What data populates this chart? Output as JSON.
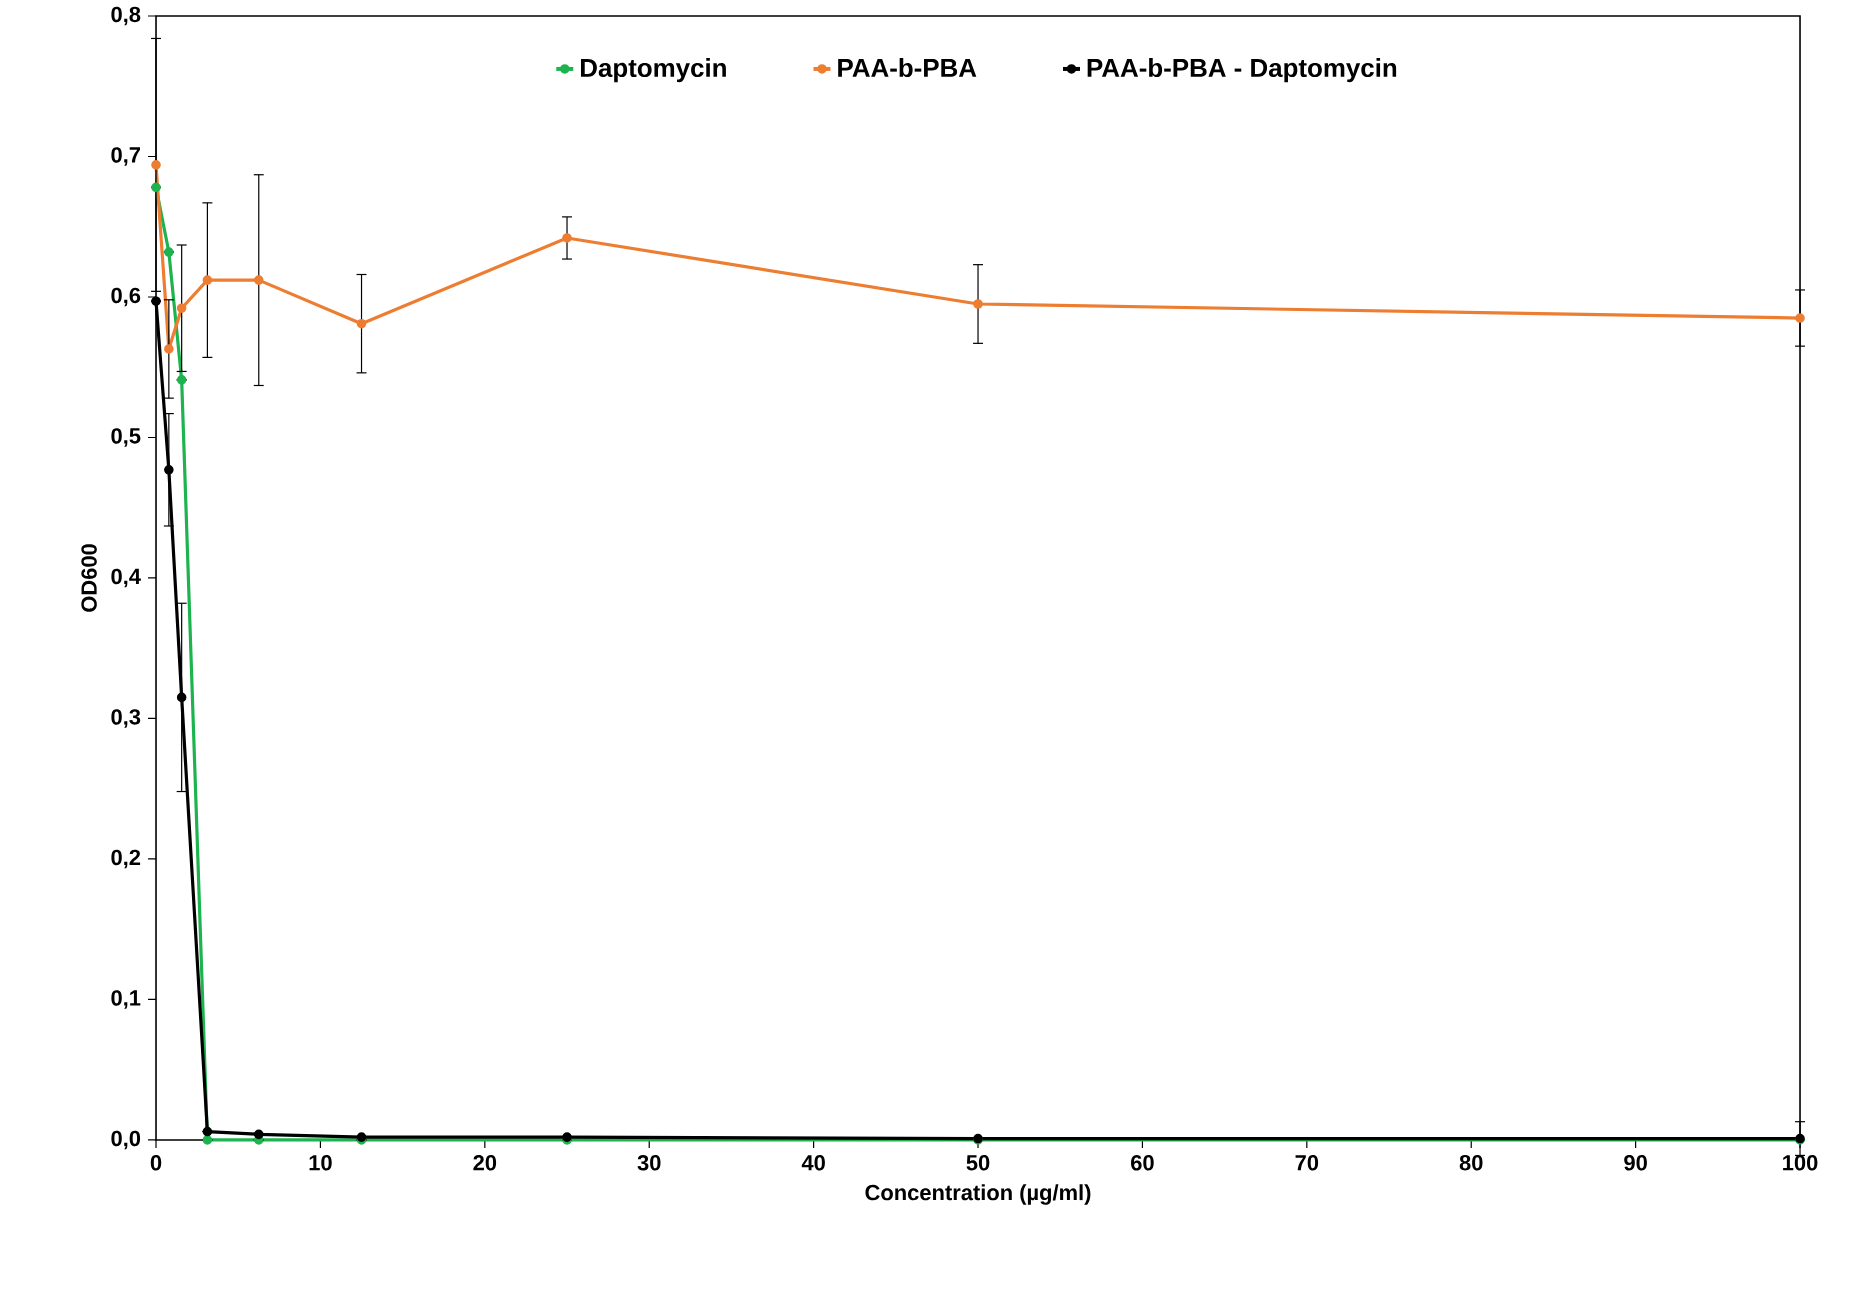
{
  "chart_data": {
    "type": "line",
    "xlabel": "Concentration (µg/ml)",
    "ylabel": "OD600",
    "xlim": [
      0,
      100
    ],
    "xticks": [
      0,
      10,
      20,
      30,
      40,
      50,
      60,
      70,
      80,
      90,
      100
    ],
    "ylim": [
      0,
      0.8
    ],
    "yticks": [
      {
        "value": 0,
        "label": "0,0"
      },
      {
        "value": 0.1,
        "label": "0,1"
      },
      {
        "value": 0.2,
        "label": "0,2"
      },
      {
        "value": 0.3,
        "label": "0,3"
      },
      {
        "value": 0.4,
        "label": "0,4"
      },
      {
        "value": 0.5,
        "label": "0,5"
      },
      {
        "value": 0.6,
        "label": "0,6"
      },
      {
        "value": 0.7,
        "label": "0,7"
      },
      {
        "value": 0.8,
        "label": "0,8"
      }
    ],
    "x": [
      0,
      0.78,
      1.56,
      3.125,
      6.25,
      12.5,
      25,
      50,
      100
    ],
    "grid": false,
    "legend": "top",
    "marker": "circle",
    "line_style": "solid",
    "series": [
      {
        "name": "Daptomycin",
        "color": "#1db34e",
        "values": [
          0.678,
          0.632,
          0.541,
          0.0,
          0.0,
          0.0,
          0.0,
          0.0,
          0.0
        ],
        "errors": [
          null,
          null,
          null,
          null,
          null,
          null,
          null,
          null,
          null
        ]
      },
      {
        "name": "PAA-b-PBA",
        "color": "#ed7d31",
        "values": [
          0.694,
          0.563,
          0.592,
          0.612,
          0.612,
          0.581,
          0.642,
          0.595,
          0.585
        ],
        "errors": [
          0.09,
          0.035,
          0.045,
          0.055,
          0.075,
          0.035,
          0.015,
          0.028,
          0.02
        ]
      },
      {
        "name": "PAA-b-PBA - Daptomycin",
        "color": "#000000",
        "values": [
          0.597,
          0.477,
          0.315,
          0.006,
          0.004,
          0.002,
          0.002,
          0.001,
          0.001
        ],
        "errors": [
          null,
          0.04,
          0.067,
          null,
          null,
          null,
          null,
          null,
          0.012
        ]
      }
    ]
  }
}
